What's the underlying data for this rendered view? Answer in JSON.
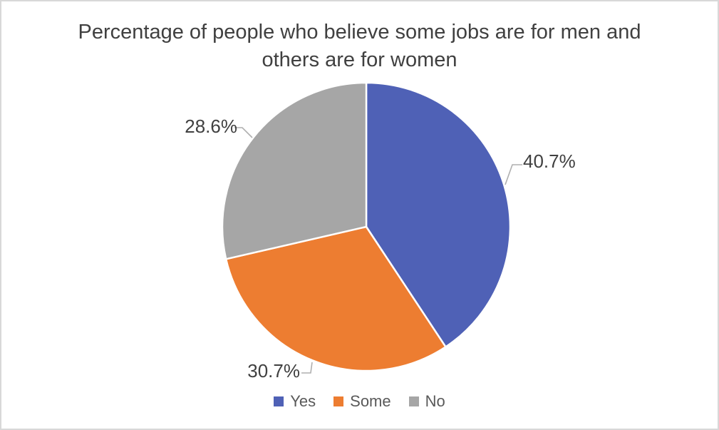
{
  "chart_data": {
    "type": "pie",
    "title": "Percentage of people who believe some jobs are for men and others are for women",
    "slices": [
      {
        "label": "Yes",
        "value": 40.7,
        "display": "40.7%",
        "color": "#4F61B6"
      },
      {
        "label": "Some",
        "value": 30.7,
        "display": "30.7%",
        "color": "#ED7D31"
      },
      {
        "label": "No",
        "value": 28.6,
        "display": "28.6%",
        "color": "#A6A6A6"
      }
    ],
    "legend_position": "bottom",
    "data_labels": "outside with leader lines",
    "start_angle_deg": 0,
    "direction": "clockwise"
  },
  "styles": {
    "background": "#FFFFFF",
    "frame_border_color": "#D8D8D8",
    "title_color": "#404040",
    "data_label_color": "#404040",
    "legend_text_color": "#595959",
    "leader_line_color": "#AFAFAF",
    "slice_separator_color": "#FFFFFF"
  }
}
